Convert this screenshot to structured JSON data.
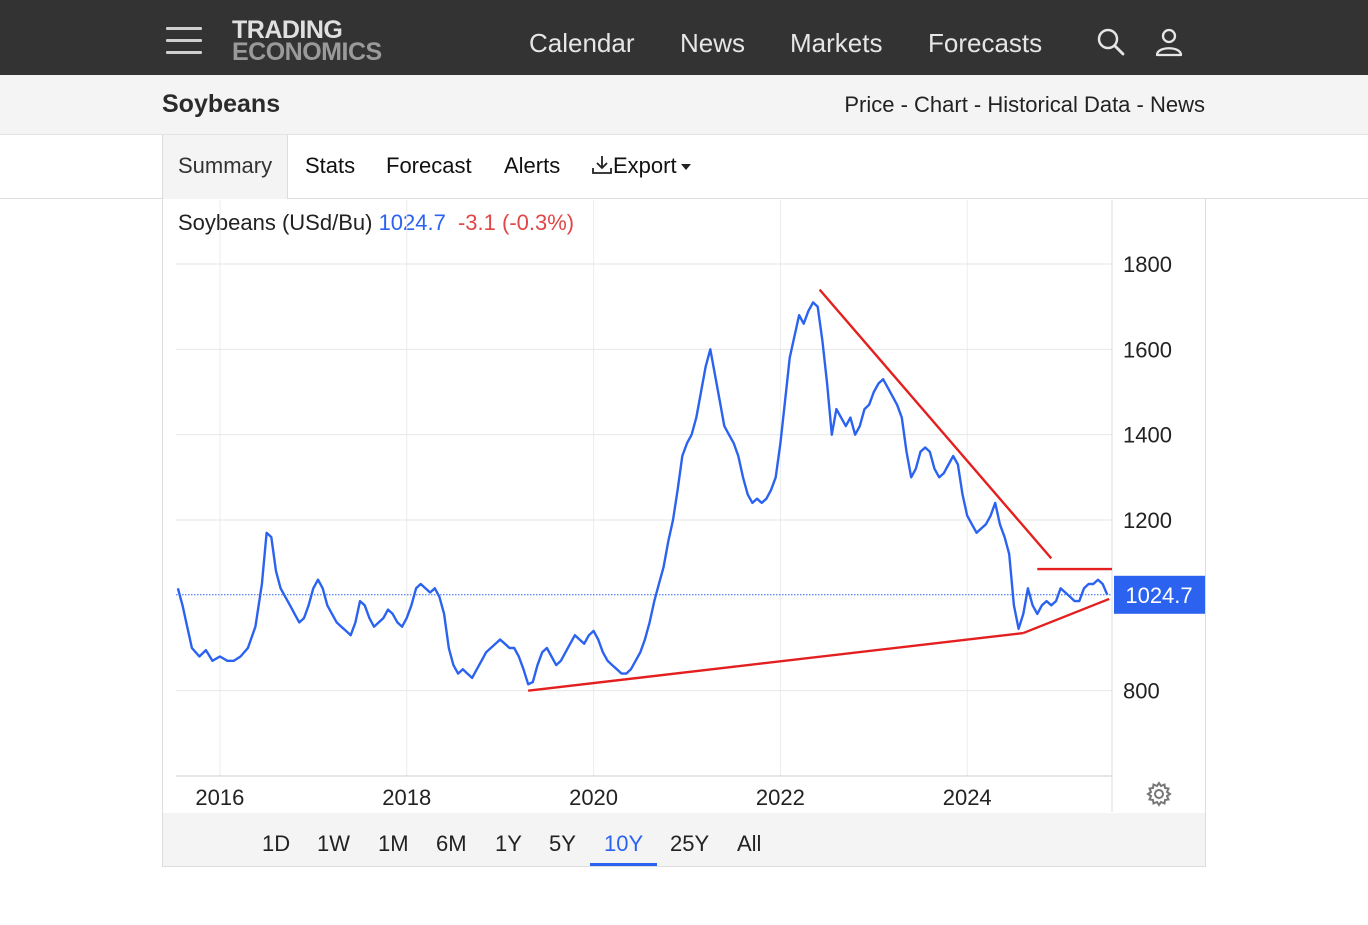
{
  "header": {
    "logo_line1": "TRADING",
    "logo_line2": "ECONOMICS",
    "nav": [
      "Calendar",
      "News",
      "Markets",
      "Forecasts"
    ],
    "icons": [
      "search-icon",
      "user-icon",
      "menu-icon"
    ]
  },
  "title_bar": {
    "title": "Soybeans",
    "links": [
      "Price",
      "Chart",
      "Historical Data",
      "News"
    ],
    "separator": " - "
  },
  "tabs": {
    "items": [
      "Summary",
      "Stats",
      "Forecast",
      "Alerts",
      "Export"
    ],
    "active": "Summary"
  },
  "quote": {
    "name": "Soybeans (USd/Bu)",
    "price": "1024.7",
    "change": "-3.1 (-0.3%)"
  },
  "ranges": {
    "items": [
      "1D",
      "1W",
      "1M",
      "6M",
      "1Y",
      "5Y",
      "10Y",
      "25Y",
      "All"
    ],
    "active": "10Y"
  },
  "colors": {
    "line": "#2b63f0",
    "trendlines": "#e41f1f",
    "negative": "#e24646",
    "header_bg": "#333333"
  },
  "chart_data": {
    "type": "line",
    "title": "Soybeans (USd/Bu)",
    "xlabel": "",
    "ylabel": "",
    "x_ticks": [
      "2016",
      "2018",
      "2020",
      "2022",
      "2024"
    ],
    "y_ticks": [
      800,
      1200,
      1400,
      1600,
      1800
    ],
    "ylim": [
      600,
      1850
    ],
    "xlim": [
      2015.53,
      2025.55
    ],
    "last_value_label": "1024.7",
    "grid": true,
    "series": [
      {
        "name": "Soybeans",
        "points": [
          [
            2015.55,
            1040
          ],
          [
            2015.6,
            1000
          ],
          [
            2015.65,
            950
          ],
          [
            2015.7,
            900
          ],
          [
            2015.78,
            880
          ],
          [
            2015.85,
            895
          ],
          [
            2015.92,
            870
          ],
          [
            2016.0,
            880
          ],
          [
            2016.08,
            870
          ],
          [
            2016.15,
            870
          ],
          [
            2016.22,
            880
          ],
          [
            2016.3,
            900
          ],
          [
            2016.38,
            950
          ],
          [
            2016.45,
            1050
          ],
          [
            2016.5,
            1170
          ],
          [
            2016.55,
            1160
          ],
          [
            2016.6,
            1080
          ],
          [
            2016.65,
            1040
          ],
          [
            2016.7,
            1020
          ],
          [
            2016.75,
            1000
          ],
          [
            2016.8,
            980
          ],
          [
            2016.85,
            960
          ],
          [
            2016.9,
            970
          ],
          [
            2016.95,
            1000
          ],
          [
            2017.0,
            1040
          ],
          [
            2017.05,
            1060
          ],
          [
            2017.1,
            1040
          ],
          [
            2017.15,
            1000
          ],
          [
            2017.2,
            980
          ],
          [
            2017.25,
            960
          ],
          [
            2017.3,
            950
          ],
          [
            2017.35,
            940
          ],
          [
            2017.4,
            930
          ],
          [
            2017.45,
            960
          ],
          [
            2017.5,
            1010
          ],
          [
            2017.55,
            1000
          ],
          [
            2017.6,
            970
          ],
          [
            2017.65,
            950
          ],
          [
            2017.7,
            960
          ],
          [
            2017.75,
            970
          ],
          [
            2017.8,
            990
          ],
          [
            2017.85,
            980
          ],
          [
            2017.9,
            960
          ],
          [
            2017.95,
            950
          ],
          [
            2018.0,
            970
          ],
          [
            2018.05,
            1000
          ],
          [
            2018.1,
            1040
          ],
          [
            2018.15,
            1050
          ],
          [
            2018.2,
            1040
          ],
          [
            2018.25,
            1030
          ],
          [
            2018.3,
            1040
          ],
          [
            2018.35,
            1020
          ],
          [
            2018.4,
            980
          ],
          [
            2018.45,
            900
          ],
          [
            2018.5,
            860
          ],
          [
            2018.55,
            840
          ],
          [
            2018.6,
            850
          ],
          [
            2018.65,
            840
          ],
          [
            2018.7,
            830
          ],
          [
            2018.75,
            850
          ],
          [
            2018.8,
            870
          ],
          [
            2018.85,
            890
          ],
          [
            2018.9,
            900
          ],
          [
            2018.95,
            910
          ],
          [
            2019.0,
            920
          ],
          [
            2019.05,
            910
          ],
          [
            2019.1,
            900
          ],
          [
            2019.15,
            900
          ],
          [
            2019.2,
            880
          ],
          [
            2019.25,
            850
          ],
          [
            2019.3,
            815
          ],
          [
            2019.35,
            820
          ],
          [
            2019.4,
            860
          ],
          [
            2019.45,
            890
          ],
          [
            2019.5,
            900
          ],
          [
            2019.55,
            880
          ],
          [
            2019.6,
            860
          ],
          [
            2019.65,
            870
          ],
          [
            2019.7,
            890
          ],
          [
            2019.75,
            910
          ],
          [
            2019.8,
            930
          ],
          [
            2019.85,
            920
          ],
          [
            2019.9,
            910
          ],
          [
            2019.95,
            930
          ],
          [
            2020.0,
            940
          ],
          [
            2020.05,
            920
          ],
          [
            2020.1,
            890
          ],
          [
            2020.15,
            870
          ],
          [
            2020.2,
            860
          ],
          [
            2020.25,
            850
          ],
          [
            2020.3,
            840
          ],
          [
            2020.35,
            840
          ],
          [
            2020.4,
            850
          ],
          [
            2020.45,
            870
          ],
          [
            2020.5,
            890
          ],
          [
            2020.55,
            920
          ],
          [
            2020.6,
            960
          ],
          [
            2020.65,
            1010
          ],
          [
            2020.7,
            1050
          ],
          [
            2020.75,
            1090
          ],
          [
            2020.8,
            1150
          ],
          [
            2020.85,
            1200
          ],
          [
            2020.9,
            1270
          ],
          [
            2020.95,
            1350
          ],
          [
            2021.0,
            1380
          ],
          [
            2021.05,
            1400
          ],
          [
            2021.1,
            1440
          ],
          [
            2021.15,
            1500
          ],
          [
            2021.2,
            1560
          ],
          [
            2021.25,
            1600
          ],
          [
            2021.3,
            1540
          ],
          [
            2021.35,
            1480
          ],
          [
            2021.4,
            1420
          ],
          [
            2021.45,
            1400
          ],
          [
            2021.5,
            1380
          ],
          [
            2021.55,
            1350
          ],
          [
            2021.6,
            1300
          ],
          [
            2021.65,
            1260
          ],
          [
            2021.7,
            1240
          ],
          [
            2021.75,
            1250
          ],
          [
            2021.8,
            1240
          ],
          [
            2021.85,
            1250
          ],
          [
            2021.9,
            1270
          ],
          [
            2021.95,
            1300
          ],
          [
            2022.0,
            1380
          ],
          [
            2022.05,
            1480
          ],
          [
            2022.1,
            1580
          ],
          [
            2022.15,
            1630
          ],
          [
            2022.2,
            1680
          ],
          [
            2022.25,
            1660
          ],
          [
            2022.3,
            1690
          ],
          [
            2022.35,
            1710
          ],
          [
            2022.4,
            1700
          ],
          [
            2022.45,
            1620
          ],
          [
            2022.5,
            1520
          ],
          [
            2022.55,
            1400
          ],
          [
            2022.6,
            1460
          ],
          [
            2022.65,
            1440
          ],
          [
            2022.7,
            1420
          ],
          [
            2022.75,
            1440
          ],
          [
            2022.8,
            1400
          ],
          [
            2022.85,
            1420
          ],
          [
            2022.9,
            1460
          ],
          [
            2022.95,
            1470
          ],
          [
            2023.0,
            1500
          ],
          [
            2023.05,
            1520
          ],
          [
            2023.1,
            1530
          ],
          [
            2023.15,
            1510
          ],
          [
            2023.2,
            1490
          ],
          [
            2023.25,
            1470
          ],
          [
            2023.3,
            1440
          ],
          [
            2023.35,
            1360
          ],
          [
            2023.4,
            1300
          ],
          [
            2023.45,
            1320
          ],
          [
            2023.5,
            1360
          ],
          [
            2023.55,
            1370
          ],
          [
            2023.6,
            1360
          ],
          [
            2023.65,
            1320
          ],
          [
            2023.7,
            1300
          ],
          [
            2023.75,
            1310
          ],
          [
            2023.8,
            1330
          ],
          [
            2023.85,
            1350
          ],
          [
            2023.9,
            1330
          ],
          [
            2023.95,
            1260
          ],
          [
            2024.0,
            1210
          ],
          [
            2024.05,
            1190
          ],
          [
            2024.1,
            1170
          ],
          [
            2024.15,
            1180
          ],
          [
            2024.2,
            1190
          ],
          [
            2024.25,
            1210
          ],
          [
            2024.3,
            1240
          ],
          [
            2024.35,
            1190
          ],
          [
            2024.4,
            1160
          ],
          [
            2024.45,
            1120
          ],
          [
            2024.5,
            1000
          ],
          [
            2024.55,
            945
          ],
          [
            2024.6,
            980
          ],
          [
            2024.65,
            1040
          ],
          [
            2024.7,
            1000
          ],
          [
            2024.75,
            980
          ],
          [
            2024.8,
            1000
          ],
          [
            2024.85,
            1010
          ],
          [
            2024.9,
            1000
          ],
          [
            2024.95,
            1010
          ],
          [
            2025.0,
            1040
          ],
          [
            2025.05,
            1030
          ],
          [
            2025.1,
            1020
          ],
          [
            2025.15,
            1010
          ],
          [
            2025.2,
            1010
          ],
          [
            2025.25,
            1040
          ],
          [
            2025.3,
            1050
          ],
          [
            2025.35,
            1050
          ],
          [
            2025.4,
            1060
          ],
          [
            2025.45,
            1050
          ],
          [
            2025.5,
            1024.7
          ]
        ]
      }
    ],
    "trendlines": [
      {
        "from": [
          2022.42,
          1740
        ],
        "to": [
          2024.9,
          1110
        ]
      },
      {
        "from": [
          2019.3,
          800
        ],
        "to": [
          2024.6,
          935
        ]
      },
      {
        "from": [
          2024.6,
          935
        ],
        "to": [
          2025.52,
          1015
        ]
      },
      {
        "from": [
          2024.75,
          1085
        ],
        "to": [
          2025.55,
          1085
        ]
      }
    ]
  }
}
